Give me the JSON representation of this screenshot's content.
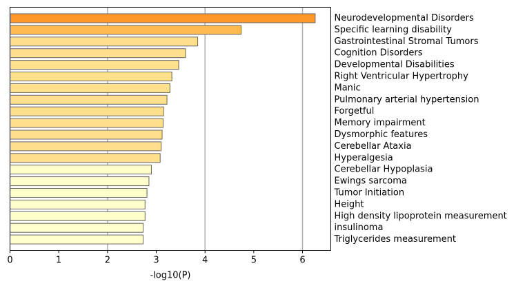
{
  "chart_data": {
    "type": "bar",
    "orientation": "horizontal",
    "categories": [
      "Neurodevelopmental Disorders",
      "Specific learning disability",
      "Gastrointestinal Stromal Tumors",
      "Cognition Disorders",
      "Developmental Disabilities",
      "Right Ventricular Hypertrophy",
      "Manic",
      "Pulmonary arterial hypertension",
      "Forgetful",
      "Memory impairment",
      "Dysmorphic features",
      "Cerebellar Ataxia",
      "Hyperalgesia",
      "Cerebellar Hypoplasia",
      "Ewings sarcoma",
      "Tumor Initiation",
      "Height",
      "High density lipoprotein measurement",
      "insulinoma",
      "Triglycerides measurement"
    ],
    "values": [
      6.26,
      4.74,
      3.85,
      3.6,
      3.46,
      3.32,
      3.28,
      3.22,
      3.15,
      3.14,
      3.12,
      3.1,
      3.08,
      2.9,
      2.85,
      2.81,
      2.77,
      2.77,
      2.73,
      2.73
    ],
    "bar_colors": [
      "#ff9829",
      "#ffbb4f",
      "#ffe08c",
      "#ffe08c",
      "#ffe08c",
      "#ffe08c",
      "#ffe08c",
      "#ffe08c",
      "#ffe08c",
      "#ffe08c",
      "#ffe08c",
      "#ffe08c",
      "#ffe08c",
      "#ffffcc",
      "#ffffcc",
      "#ffffcc",
      "#ffffcc",
      "#ffffcc",
      "#ffffcc",
      "#ffffcc"
    ],
    "bar_edge_color": "#666666",
    "grid_color": "#b0b0b0",
    "xlabel": "-log10(P)",
    "ylabel": "",
    "title": "",
    "xlim": [
      0,
      6.58
    ],
    "xticks": [
      "0",
      "1",
      "2",
      "3",
      "4",
      "5",
      "6"
    ],
    "grid": "vertical at ticks 2, 4, 6",
    "category_labels_side": "right"
  }
}
